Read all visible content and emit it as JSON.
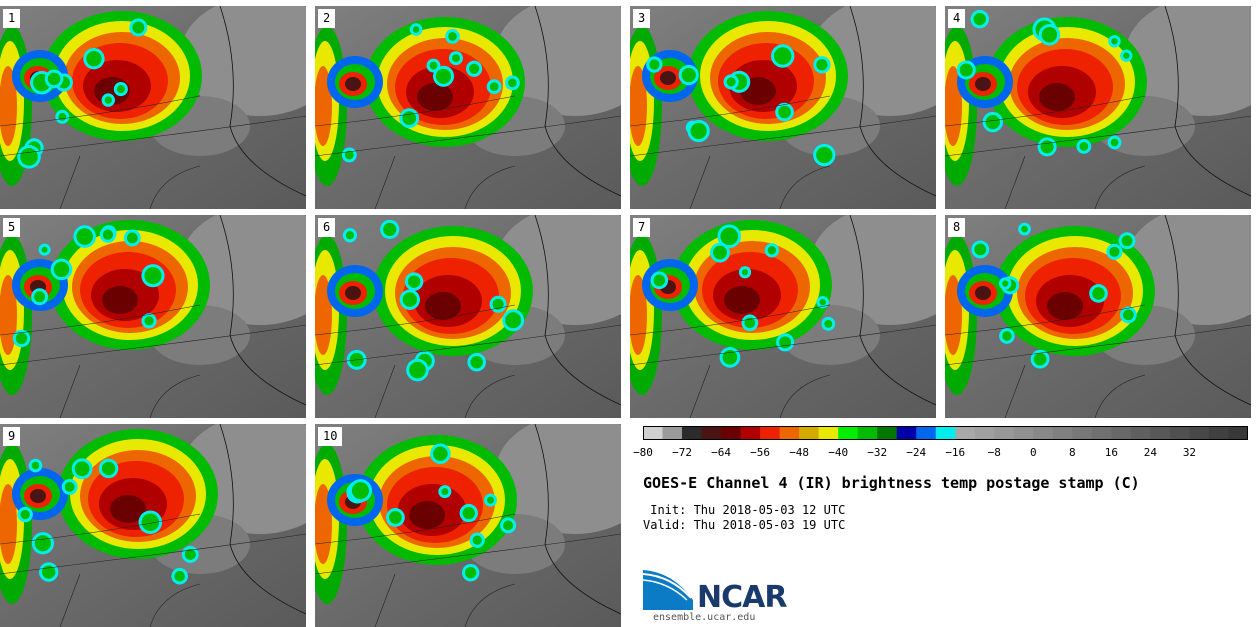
{
  "panels": [
    {
      "label": "1"
    },
    {
      "label": "2"
    },
    {
      "label": "3"
    },
    {
      "label": "4"
    },
    {
      "label": "5"
    },
    {
      "label": "6"
    },
    {
      "label": "7"
    },
    {
      "label": "8"
    },
    {
      "label": "9"
    },
    {
      "label": "10"
    }
  ],
  "colorbar": {
    "colors": [
      "#d0d0d0",
      "#9a9a9a",
      "#2b2b2b",
      "#4a1414",
      "#6b0000",
      "#b00000",
      "#ee2200",
      "#ee6600",
      "#d4aa00",
      "#e8e800",
      "#00ee00",
      "#00bb00",
      "#007700",
      "#0000aa",
      "#0066ee",
      "#00eeee",
      "#a8a8a8",
      "#a0a0a0",
      "#989898",
      "#909090",
      "#888888",
      "#808080",
      "#787878",
      "#707070",
      "#686868",
      "#606060",
      "#585858",
      "#505050",
      "#484848",
      "#404040",
      "#383838"
    ],
    "tick_labels": [
      "−80",
      "−72",
      "−64",
      "−56",
      "−48",
      "−40",
      "−32",
      "−24",
      "−16",
      "−8",
      "0",
      "8",
      "16",
      "24",
      "32"
    ]
  },
  "title": "GOES-E Channel 4 (IR) brightness temp postage stamp (C)",
  "init": " Init: Thu 2018-05-03 12 UTC",
  "valid": "Valid: Thu 2018-05-03 19 UTC",
  "logo": {
    "text": "NCAR",
    "url": "ensemble.ucar.edu"
  }
}
